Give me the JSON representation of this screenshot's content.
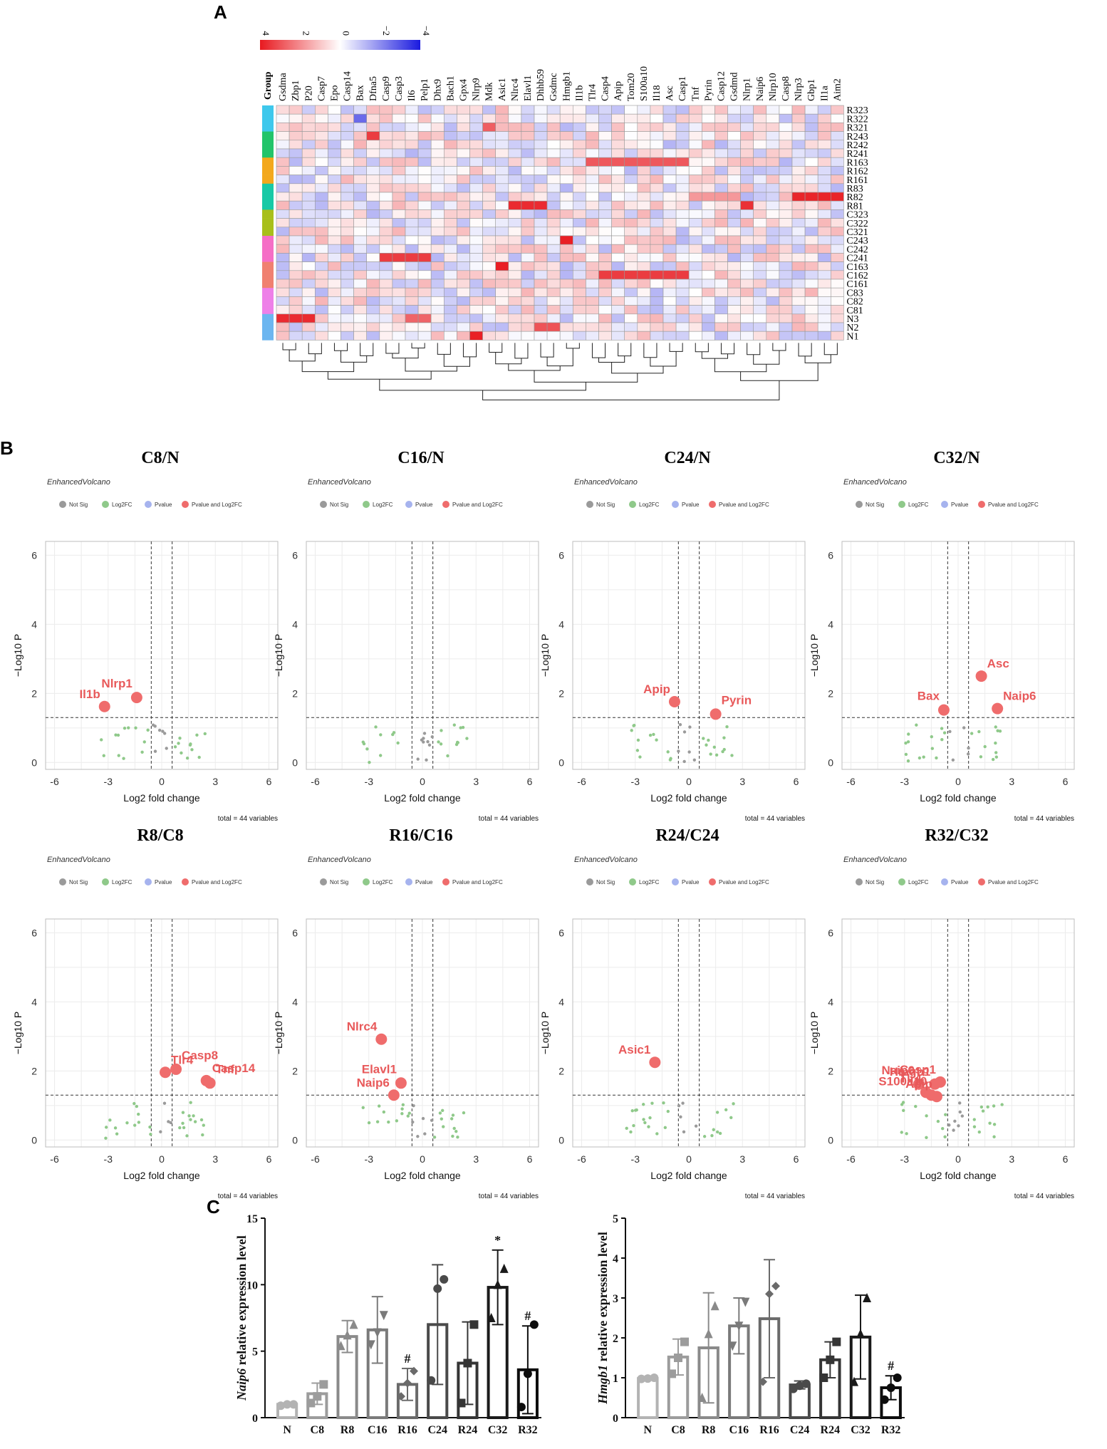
{
  "chart_data": [
    {
      "panel": "A",
      "type": "heatmap",
      "legend_ticks": [
        "4",
        "2",
        "0",
        "−2",
        "−4"
      ],
      "legend_range": [
        4,
        -4
      ],
      "group_header": "Group",
      "genes": [
        "Gsdma",
        "Zbp1",
        "P20",
        "Casp7",
        "Epo",
        "Casp14",
        "Bax",
        "Dfna5",
        "Casp9",
        "Casp3",
        "Il6",
        "Pelp1",
        "Dhx9",
        "Bach1",
        "Gpx4",
        "Nlrp9",
        "Mdk",
        "Asic1",
        "Nlrc4",
        "Elavl1",
        "Dhhb59",
        "Gsdmc",
        "Hmgb1",
        "Il1b",
        "Tlr4",
        "Casp4",
        "Apip",
        "Tom20",
        "S100a10",
        "Il18",
        "Asc",
        "Casp1",
        "Tnf",
        "Pyrin",
        "Casp12",
        "Gsdmd",
        "Nlrp1",
        "Naip6",
        "Nlrp10",
        "Casp8",
        "Nlrp3",
        "Gbp1",
        "Il1a",
        "Aim2"
      ],
      "samples": [
        "R323",
        "R322",
        "R321",
        "R243",
        "R242",
        "R241",
        "R163",
        "R162",
        "R161",
        "R83",
        "R82",
        "R81",
        "C323",
        "C322",
        "C321",
        "C243",
        "C242",
        "C241",
        "C163",
        "C162",
        "C161",
        "C83",
        "C82",
        "C81",
        "N3",
        "N2",
        "N1"
      ],
      "group_colors": [
        "#3ec8ec",
        "#3ec8ec",
        "#3ec8ec",
        "#22c46a",
        "#22c46a",
        "#22c46a",
        "#f3a81c",
        "#f3a81c",
        "#f3a81c",
        "#18c9a6",
        "#18c9a6",
        "#18c9a6",
        "#a8bf1a",
        "#a8bf1a",
        "#a8bf1a",
        "#f56ec6",
        "#f56ec6",
        "#f56ec6",
        "#f08070",
        "#f08070",
        "#f08070",
        "#ee80e8",
        "#ee80e8",
        "#ee80e8",
        "#6cb6f0",
        "#6cb6f0",
        "#6cb6f0"
      ],
      "colors": {
        "high": "#e8191f",
        "mid": "#ffffff",
        "low": "#1a1adf"
      },
      "highlights": [
        {
          "sample": "R243",
          "genes": [
            "Dfna5"
          ],
          "value": 3.4
        },
        {
          "sample": "R322",
          "genes": [
            "Bax"
          ],
          "value": -2.6
        },
        {
          "sample": "R321",
          "genes": [
            "Mdk"
          ],
          "value": 2.8
        },
        {
          "sample": "R163",
          "genes": [
            "Tlr4",
            "Casp4",
            "Apip",
            "Tom20",
            "S100a10",
            "Il18",
            "Asc",
            "Casp1"
          ],
          "value": 2.9
        },
        {
          "sample": "R82",
          "genes": [
            "Tnf",
            "Pyrin",
            "Casp12",
            "Gsdmd"
          ],
          "value": 1.8
        },
        {
          "sample": "R82",
          "genes": [
            "Nlrp3",
            "Gbp1",
            "Il1a",
            "Aim2"
          ],
          "value": 3.8
        },
        {
          "sample": "R81",
          "genes": [
            "Nlrc4",
            "Elavl1",
            "Dhhb59"
          ],
          "value": 3.7
        },
        {
          "sample": "R81",
          "genes": [
            "Nlrp1"
          ],
          "value": 3.6
        },
        {
          "sample": "C241",
          "genes": [
            "Casp9",
            "Casp3",
            "Il6",
            "Pelp1"
          ],
          "value": 3.4
        },
        {
          "sample": "C243",
          "genes": [
            "Hmgb1"
          ],
          "value": 3.9
        },
        {
          "sample": "C163",
          "genes": [
            "Asic1"
          ],
          "value": 3.9
        },
        {
          "sample": "C162",
          "genes": [
            "Casp4",
            "Apip",
            "Tom20",
            "S100a10",
            "Il18",
            "Asc",
            "Casp1"
          ],
          "value": 3.4
        },
        {
          "sample": "N3",
          "genes": [
            "Gsdma",
            "Zbp1",
            "P20"
          ],
          "value": 3.7
        },
        {
          "sample": "N3",
          "genes": [
            "Il6",
            "Pelp1"
          ],
          "value": 2.7
        },
        {
          "sample": "N1",
          "genes": [
            "Nlrp9"
          ],
          "value": 3.9
        },
        {
          "sample": "N2",
          "genes": [
            "Dhhb59",
            "Gsdmc"
          ],
          "value": 3.0
        }
      ]
    },
    {
      "panel": "B",
      "type": "scatter",
      "subtitle": "EnhancedVolcano",
      "legend": [
        "Not Sig",
        "Log2FC",
        "Pvalue",
        "Pvalue and Log2FC"
      ],
      "legend_colors": [
        "#9a9a9a",
        "#8fc98a",
        "#a6b3ee",
        "#ef6c6c"
      ],
      "xlabel": "Log2 fold change",
      "ylabel": "−Log10 P",
      "x_ticks": [
        "-6",
        "-3",
        "0",
        "3",
        "6"
      ],
      "y_ticks": [
        "0",
        "2",
        "4",
        "6"
      ],
      "xlim": [
        -6.5,
        6.5
      ],
      "ylim": [
        -0.2,
        6.4
      ],
      "fc_cutoff": 0.585,
      "p_cutoff": 1.3,
      "total": "total = 44 variables",
      "panels": [
        {
          "title": "C8/N",
          "sig": [
            {
              "label": "Il1b",
              "x": -3.2,
              "y": 1.62
            },
            {
              "label": "Nlrp1",
              "x": -1.4,
              "y": 1.88
            }
          ]
        },
        {
          "title": "C16/N",
          "sig": []
        },
        {
          "title": "C24/N",
          "sig": [
            {
              "label": "Apip",
              "x": -0.8,
              "y": 1.76
            },
            {
              "label": "Pyrin",
              "x": 1.5,
              "y": 1.4
            }
          ]
        },
        {
          "title": "C32/N",
          "sig": [
            {
              "label": "Asc",
              "x": 1.3,
              "y": 2.5
            },
            {
              "label": "Bax",
              "x": -0.8,
              "y": 1.52
            },
            {
              "label": "Naip6",
              "x": 2.2,
              "y": 1.56
            }
          ]
        },
        {
          "title": "R8/C8",
          "sig": [
            {
              "label": "Tlr4",
              "x": 0.2,
              "y": 1.96
            },
            {
              "label": "Casp8",
              "x": 0.8,
              "y": 2.05
            },
            {
              "label": "Casp14",
              "x": 2.5,
              "y": 1.72
            },
            {
              "label": "Tnf",
              "x": 2.7,
              "y": 1.65
            }
          ]
        },
        {
          "title": "R16/C16",
          "sig": [
            {
              "label": "Nlrc4",
              "x": -2.3,
              "y": 2.92
            },
            {
              "label": "Elavl1",
              "x": -1.2,
              "y": 1.65
            },
            {
              "label": "Naip6",
              "x": -1.6,
              "y": 1.3
            }
          ]
        },
        {
          "title": "R24/C24",
          "sig": [
            {
              "label": "Asic1",
              "x": -1.9,
              "y": 2.25
            }
          ]
        },
        {
          "title": "R32/C32",
          "sig": [
            {
              "label": "Casp1",
              "x": -1.0,
              "y": 1.68
            },
            {
              "label": "Naip6",
              "x": -2.2,
              "y": 1.62
            },
            {
              "label": "Hmgb1",
              "x": -1.3,
              "y": 1.62
            },
            {
              "label": "Tlr4",
              "x": -1.8,
              "y": 1.38
            },
            {
              "label": "Apip",
              "x": -1.2,
              "y": 1.26
            },
            {
              "label": "S100a10",
              "x": -1.5,
              "y": 1.3
            }
          ]
        }
      ]
    },
    {
      "panel": "C",
      "type": "bar",
      "title": "",
      "categories": [
        "N",
        "C8",
        "R8",
        "C16",
        "R16",
        "C24",
        "R24",
        "C32",
        "R32"
      ],
      "charts": [
        {
          "ylabel_gene": "Naip6",
          "ylabel_rest": " relative expression level",
          "ylim": [
            0,
            15
          ],
          "y_ticks": [
            "0",
            "5",
            "10",
            "15"
          ],
          "values": [
            1.0,
            1.8,
            6.1,
            6.6,
            2.5,
            7.0,
            4.1,
            9.8,
            3.6
          ],
          "errors": [
            0.1,
            0.8,
            1.2,
            2.5,
            1.2,
            4.5,
            3.1,
            2.8,
            3.3
          ],
          "points": [
            [
              0.9,
              1.0,
              1.0
            ],
            [
              1.1,
              1.6,
              2.5
            ],
            [
              5.4,
              6.2,
              7.0
            ],
            [
              5.5,
              6.4,
              7.7
            ],
            [
              1.6,
              2.6,
              3.5
            ],
            [
              2.8,
              9.7,
              10.4
            ],
            [
              1.1,
              4.1,
              7.0
            ],
            [
              7.5,
              10.0,
              11.2
            ],
            [
              0.8,
              3.3,
              7.0
            ]
          ],
          "annotations": [
            {
              "index": 4,
              "text": "#"
            },
            {
              "index": 7,
              "text": "*"
            },
            {
              "index": 8,
              "text": "#"
            }
          ]
        },
        {
          "ylabel_gene": "Hmgb1",
          "ylabel_rest": " relative expression level",
          "ylim": [
            0,
            5
          ],
          "y_ticks": [
            "0",
            "1",
            "2",
            "3",
            "4",
            "5"
          ],
          "values": [
            0.98,
            1.52,
            1.75,
            2.3,
            2.48,
            0.82,
            1.45,
            2.02,
            0.75
          ],
          "errors": [
            0.03,
            0.45,
            1.38,
            0.7,
            1.48,
            0.1,
            0.45,
            1.05,
            0.3
          ],
          "points": [
            [
              0.97,
              0.98,
              1.0
            ],
            [
              1.1,
              1.5,
              1.9
            ],
            [
              0.5,
              2.1,
              2.8
            ],
            [
              1.8,
              2.3,
              2.9
            ],
            [
              0.9,
              3.1,
              3.3
            ],
            [
              0.72,
              0.8,
              0.85
            ],
            [
              1.0,
              1.45,
              1.9
            ],
            [
              0.9,
              2.1,
              3.0
            ],
            [
              0.45,
              0.75,
              1.0
            ]
          ],
          "annotations": [
            {
              "index": 8,
              "text": "#"
            }
          ]
        }
      ]
    }
  ]
}
